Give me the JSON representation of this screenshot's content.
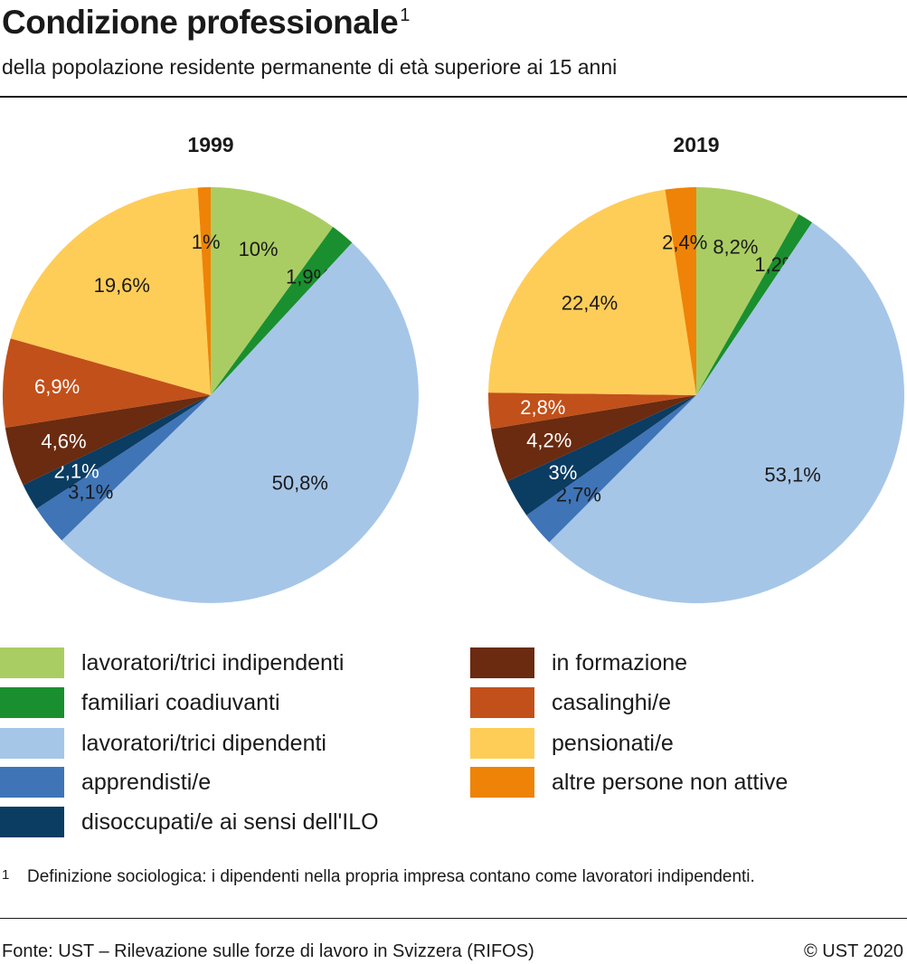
{
  "title": "Condizione professionale",
  "title_note": "1",
  "subtitle": "della popolazione residente permanente di età superiore ai 15 anni",
  "chart_data": [
    {
      "type": "pie",
      "title": "1999",
      "categories": [
        "lavoratori/trici indipendenti",
        "familiari coadiuvanti",
        "lavoratori/trici dipendenti",
        "apprendisti/e",
        "disoccupati/e ai sensi dell'ILO",
        "in formazione",
        "casalinghi/e",
        "pensionati/e",
        "altre persone non attive"
      ],
      "values": [
        10,
        1.9,
        50.8,
        3.1,
        2.1,
        4.6,
        6.9,
        19.6,
        1
      ],
      "labels": [
        "10%",
        "1,9%",
        "50,8%",
        "3,1%",
        "2,1%",
        "4,6%",
        "6,9%",
        "19,6%",
        "1%"
      ]
    },
    {
      "type": "pie",
      "title": "2019",
      "categories": [
        "lavoratori/trici indipendenti",
        "familiari coadiuvanti",
        "lavoratori/trici dipendenti",
        "apprendisti/e",
        "disoccupati/e ai sensi dell'ILO",
        "in formazione",
        "casalinghi/e",
        "pensionati/e",
        "altre persone non attive"
      ],
      "values": [
        8.2,
        1.2,
        53.1,
        2.7,
        3,
        4.2,
        2.8,
        22.4,
        2.4
      ],
      "labels": [
        "8,2%",
        "1,2%",
        "53,1%",
        "2,7%",
        "3%",
        "4,2%",
        "2,8%",
        "22,4%",
        "2,4%"
      ]
    }
  ],
  "colors": [
    "#aacd63",
    "#1a8f2f",
    "#a6c6e8",
    "#3f74b6",
    "#0b3c62",
    "#6a2b10",
    "#c2501a",
    "#fecd58",
    "#ee8307"
  ],
  "label_colors": [
    "#1a1a1a",
    "#1a1a1a",
    "#1a1a1a",
    "#1a1a1a",
    "#ffffff",
    "#ffffff",
    "#ffffff",
    "#1a1a1a",
    "#1a1a1a"
  ],
  "legend": {
    "items": [
      "lavoratori/trici indipendenti",
      "familiari coadiuvanti",
      "lavoratori/trici dipendenti",
      "apprendisti/e",
      "disoccupati/e ai sensi dell'ILO",
      "in formazione",
      "casalinghi/e",
      "pensionati/e",
      "altre persone non attive"
    ]
  },
  "footnote": {
    "num": "1",
    "text": "Definizione sociologica: i dipendenti nella propria impresa contano come lavoratori indipendenti."
  },
  "source": "Fonte: UST – Rilevazione sulle forze di lavoro in Svizzera (RIFOS)",
  "copyright": "© UST 2020"
}
